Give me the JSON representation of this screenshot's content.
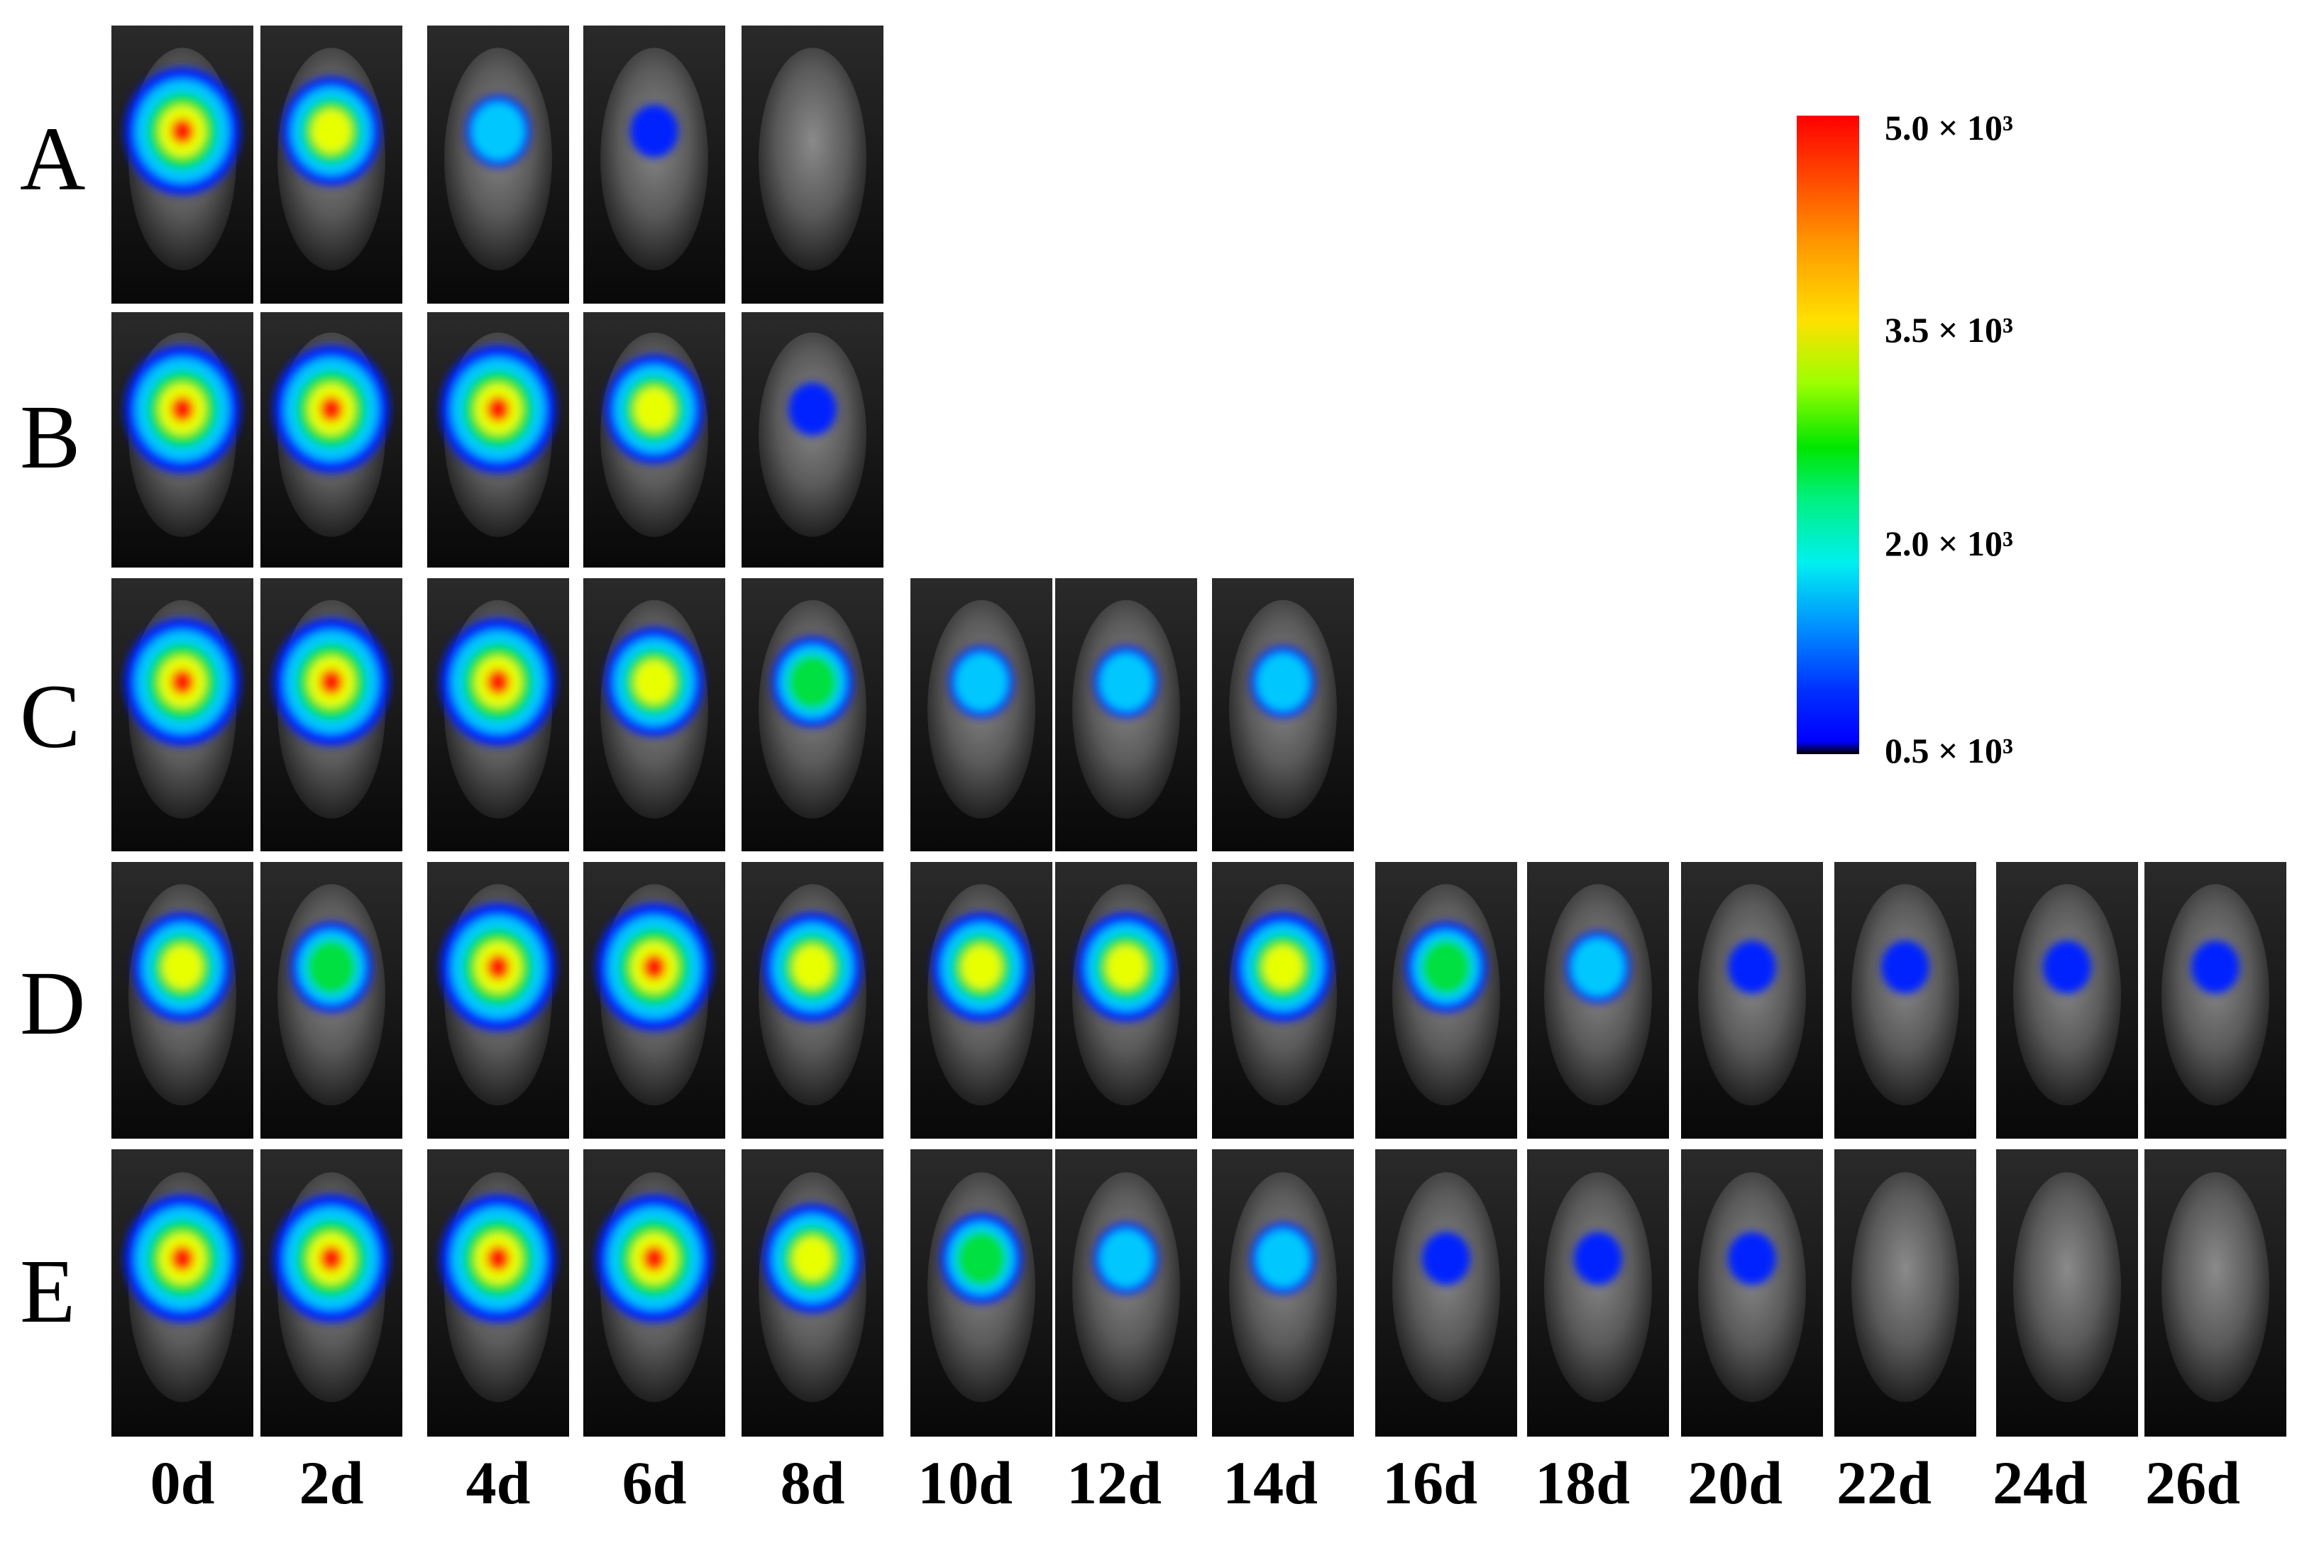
{
  "rows": [
    "A",
    "B",
    "C",
    "D",
    "E"
  ],
  "days": [
    "0d",
    "2d",
    "4d",
    "6d",
    "8d",
    "10d",
    "12d",
    "14d",
    "16d",
    "18d",
    "20d",
    "22d",
    "24d",
    "26d"
  ],
  "row_panel_counts": [
    5,
    5,
    8,
    14,
    14
  ],
  "colorbar": {
    "ticks": [
      "5.0 × 10³",
      "3.5 × 10³",
      "2.0 × 10³",
      "0.5 × 10³"
    ],
    "scale": [
      "#ff0000",
      "#ff9800",
      "#ffe000",
      "#00e600",
      "#00f0f0",
      "#0030ff",
      "#000000"
    ]
  },
  "signal_intensity": {
    "A": [
      5,
      4,
      2,
      1,
      0
    ],
    "B": [
      5,
      5,
      5,
      4,
      1
    ],
    "C": [
      5,
      5,
      5,
      4,
      3,
      2,
      2,
      2
    ],
    "D": [
      4,
      3,
      5,
      5,
      4,
      4,
      4,
      4,
      3,
      2,
      1,
      1,
      1,
      1
    ],
    "E": [
      5,
      5,
      5,
      5,
      4,
      3,
      2,
      2,
      1,
      1,
      1,
      0,
      0,
      0
    ]
  }
}
